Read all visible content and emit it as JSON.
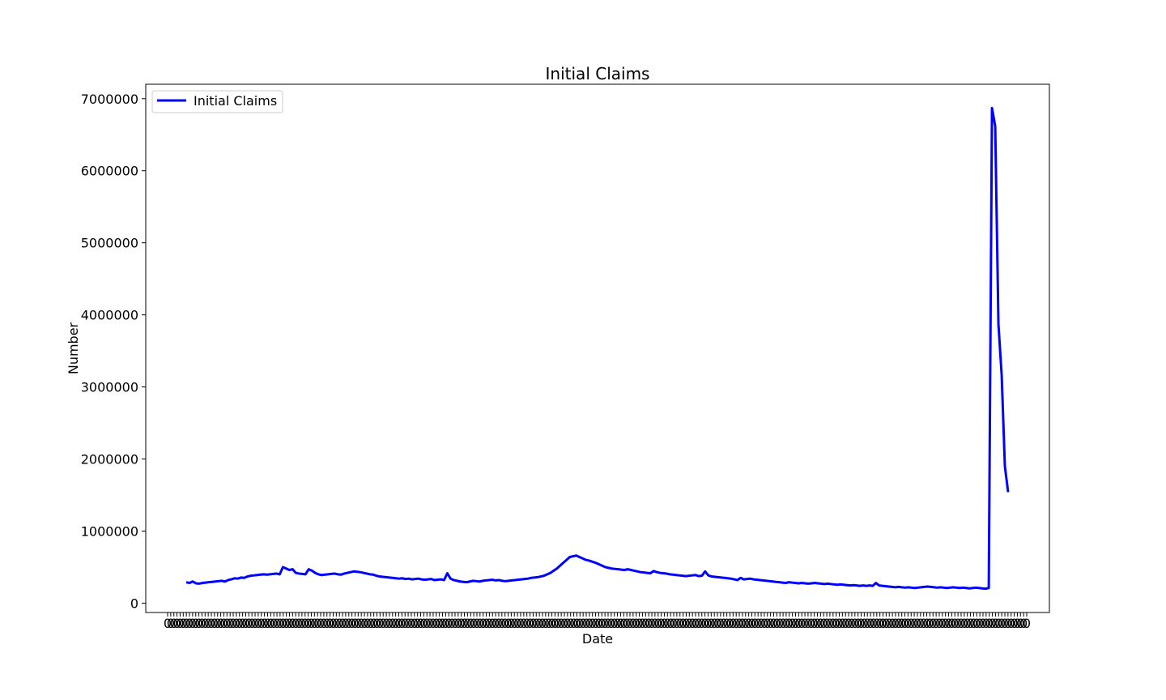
{
  "chart_data": {
    "type": "line",
    "title": "Initial Claims",
    "xlabel": "Date",
    "ylabel": "Number",
    "ylim": [
      -130000,
      7200000
    ],
    "yticks": [
      0,
      1000000,
      2000000,
      3000000,
      4000000,
      5000000,
      6000000,
      7000000
    ],
    "ytick_labels": [
      "0",
      "1000000",
      "2000000",
      "3000000",
      "4000000",
      "5000000",
      "6000000",
      "7000000"
    ],
    "xtick_label_repeated": "0",
    "xtick_count": 276,
    "grid": false,
    "legend_position": "top-left",
    "color": "#0000ff",
    "series": [
      {
        "name": "Initial Claims",
        "color": "#0000ff",
        "values": [
          290000,
          280000,
          300000,
          275000,
          270000,
          280000,
          285000,
          290000,
          295000,
          300000,
          305000,
          310000,
          300000,
          320000,
          330000,
          345000,
          340000,
          355000,
          350000,
          370000,
          380000,
          385000,
          390000,
          395000,
          400000,
          395000,
          400000,
          405000,
          410000,
          400000,
          500000,
          480000,
          460000,
          470000,
          420000,
          410000,
          405000,
          400000,
          470000,
          450000,
          420000,
          400000,
          390000,
          395000,
          400000,
          405000,
          410000,
          400000,
          395000,
          410000,
          420000,
          430000,
          440000,
          435000,
          430000,
          420000,
          410000,
          400000,
          395000,
          380000,
          370000,
          365000,
          360000,
          355000,
          350000,
          345000,
          340000,
          345000,
          335000,
          340000,
          330000,
          335000,
          340000,
          330000,
          325000,
          330000,
          335000,
          320000,
          325000,
          330000,
          320000,
          415000,
          340000,
          320000,
          310000,
          300000,
          295000,
          290000,
          300000,
          310000,
          305000,
          300000,
          310000,
          315000,
          320000,
          325000,
          315000,
          320000,
          310000,
          305000,
          310000,
          315000,
          320000,
          325000,
          330000,
          335000,
          340000,
          350000,
          355000,
          360000,
          370000,
          380000,
          400000,
          420000,
          450000,
          480000,
          520000,
          560000,
          600000,
          640000,
          650000,
          660000,
          640000,
          620000,
          600000,
          590000,
          575000,
          560000,
          540000,
          520000,
          500000,
          490000,
          480000,
          475000,
          470000,
          465000,
          460000,
          470000,
          460000,
          450000,
          440000,
          430000,
          425000,
          420000,
          415000,
          445000,
          430000,
          420000,
          415000,
          410000,
          400000,
          395000,
          390000,
          385000,
          380000,
          375000,
          380000,
          385000,
          390000,
          375000,
          380000,
          440000,
          385000,
          370000,
          365000,
          360000,
          355000,
          350000,
          345000,
          340000,
          330000,
          320000,
          350000,
          330000,
          335000,
          340000,
          330000,
          325000,
          320000,
          315000,
          310000,
          305000,
          300000,
          295000,
          290000,
          285000,
          280000,
          290000,
          285000,
          280000,
          275000,
          280000,
          275000,
          270000,
          275000,
          280000,
          275000,
          270000,
          265000,
          270000,
          265000,
          260000,
          255000,
          260000,
          255000,
          250000,
          245000,
          250000,
          245000,
          240000,
          245000,
          240000,
          245000,
          240000,
          280000,
          245000,
          240000,
          235000,
          230000,
          225000,
          220000,
          225000,
          220000,
          215000,
          220000,
          215000,
          210000,
          215000,
          220000,
          225000,
          230000,
          225000,
          220000,
          215000,
          220000,
          215000,
          210000,
          215000,
          220000,
          215000,
          210000,
          215000,
          210000,
          205000,
          210000,
          215000,
          210000,
          205000,
          200000,
          210000,
          6870000,
          6620000,
          3870000,
          3170000,
          1900000,
          1540000
        ]
      }
    ]
  }
}
